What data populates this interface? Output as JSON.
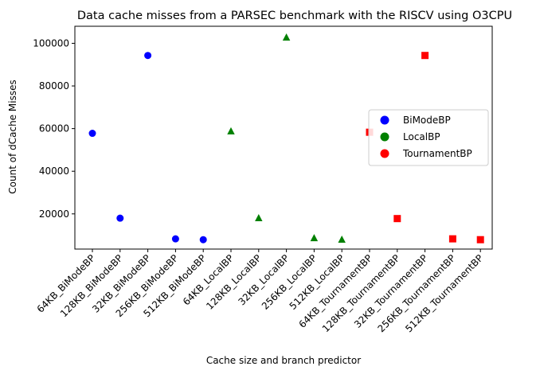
{
  "chart_data": {
    "type": "scatter",
    "title": "Data cache misses from a PARSEC benchmark with the RISCV using O3CPU",
    "xlabel": "Cache size and branch predictor",
    "ylabel": "Count of dCache Misses",
    "ylim": [
      3500,
      108000
    ],
    "yticks": [
      20000,
      40000,
      60000,
      80000,
      100000
    ],
    "ytick_labels": [
      "20000",
      "40000",
      "60000",
      "80000",
      "100000"
    ],
    "categories": [
      "64KB_BiModeBP",
      "128KB_BiModeBP",
      "32KB_BiModeBP",
      "256KB_BiModeBP",
      "512KB_BiModeBP",
      "64KB_LocalBP",
      "128KB_LocalBP",
      "32KB_LocalBP",
      "256KB_LocalBP",
      "512KB_LocalBP",
      "64KB_TournamentBP",
      "128KB_TournamentBP",
      "32KB_TournamentBP",
      "256KB_TournamentBP",
      "512KB_TournamentBP"
    ],
    "series": [
      {
        "name": "BiModeBP",
        "color": "#0000ff",
        "marker": "circle",
        "indices": [
          0,
          1,
          2,
          3,
          4
        ],
        "values": [
          57800,
          18000,
          94300,
          8300,
          7900
        ]
      },
      {
        "name": "LocalBP",
        "color": "#008000",
        "marker": "triangle",
        "indices": [
          5,
          6,
          7,
          8,
          9
        ],
        "values": [
          58700,
          18000,
          102700,
          8600,
          7900
        ]
      },
      {
        "name": "TournamentBP",
        "color": "#ff0000",
        "marker": "square",
        "indices": [
          10,
          11,
          12,
          13,
          14
        ],
        "values": [
          58300,
          17800,
          94300,
          8300,
          7900
        ]
      }
    ],
    "legend": {
      "position": "center-right"
    },
    "grid": false
  }
}
